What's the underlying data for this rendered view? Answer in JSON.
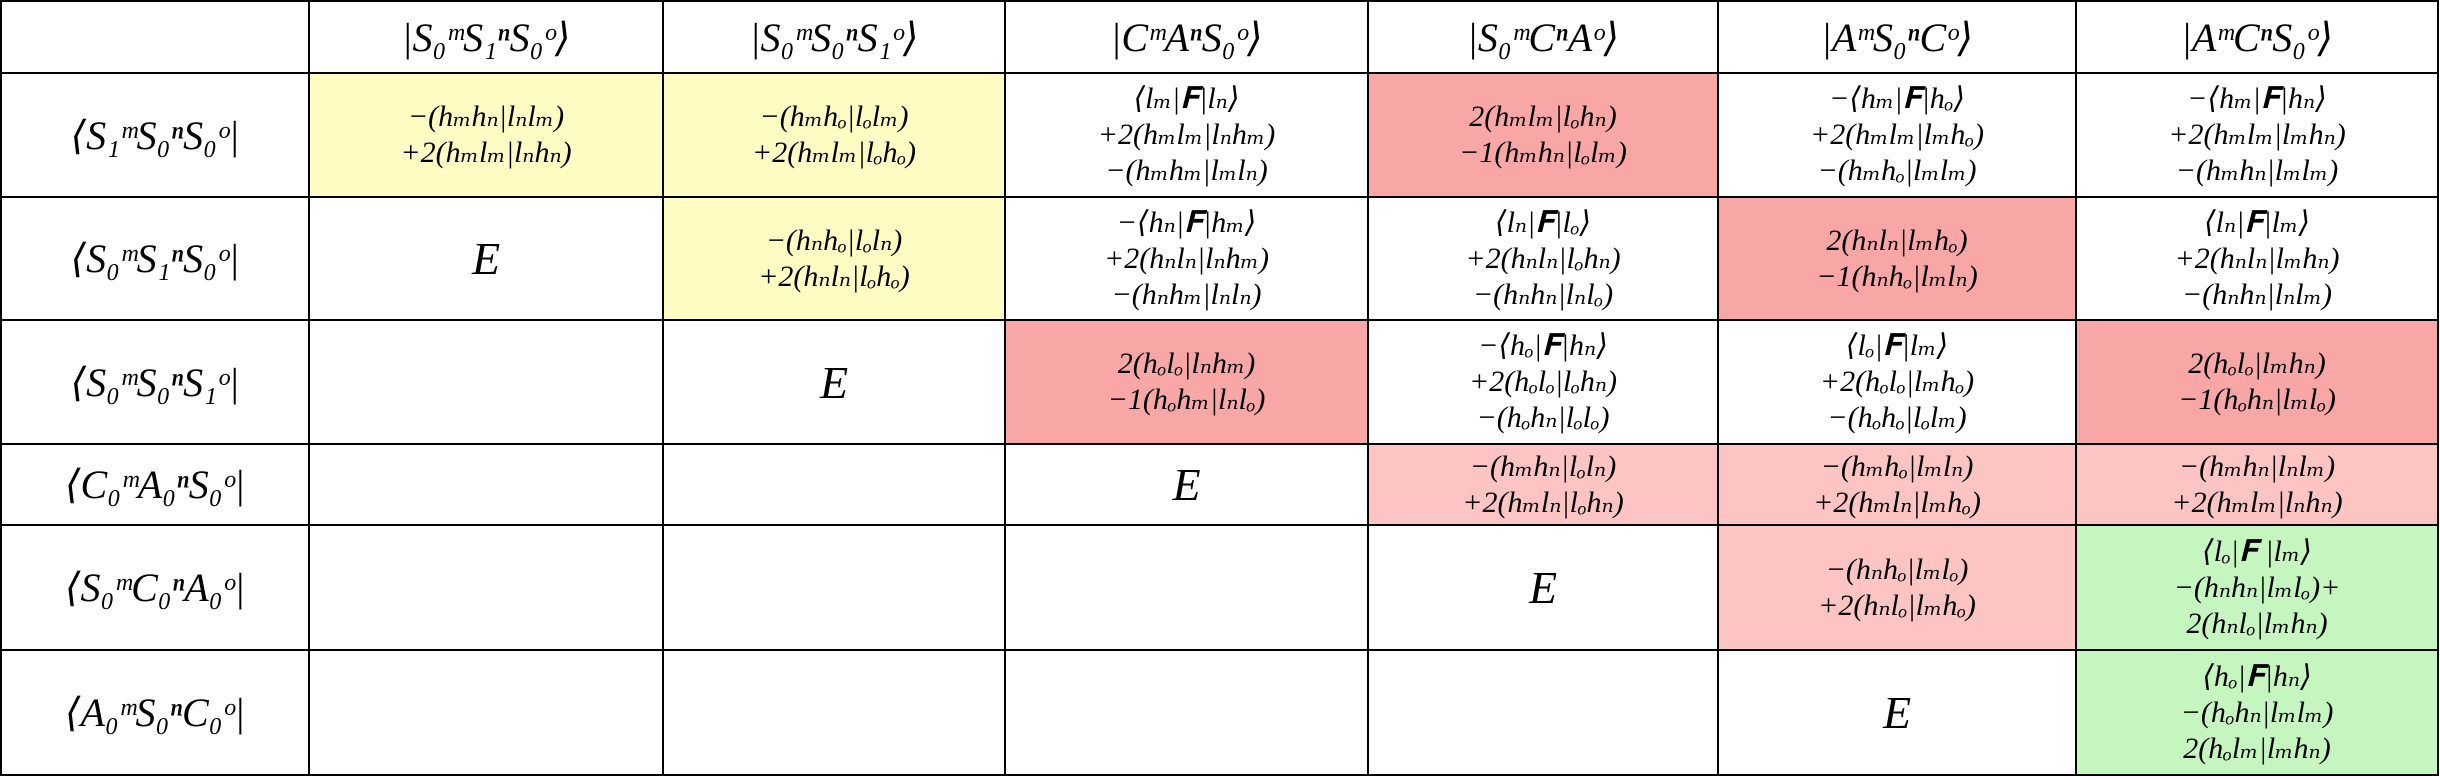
{
  "table": {
    "header": [
      "|S₀ᵐS₁ⁿS₀ᵒ⟩",
      "|S₀ᵐS₀ⁿS₁ᵒ⟩",
      "|CᵐAⁿS₀ᵒ⟩",
      "|S₀ᵐCⁿAᵒ⟩",
      "|AᵐS₀ⁿCᵒ⟩",
      "|AᵐCⁿS₀ᵒ⟩"
    ],
    "rows": [
      {
        "label": "⟨S₁ᵐS₀ⁿS₀ᵒ|",
        "cells": [
          {
            "lines": [
              "−(hₘhₙ|lₙlₘ)",
              "+2(hₘlₘ|lₙhₙ)"
            ],
            "color": "#fefcc2"
          },
          {
            "lines": [
              "−(hₘhₒ|lₒlₘ)",
              "+2(hₘlₘ|lₒhₒ)"
            ],
            "color": "#fefcc2"
          },
          {
            "lines": [
              "⟨lₘ|𝐅|lₙ⟩",
              "+2(hₘlₘ|lₙhₘ)",
              "−(hₘhₘ|lₘlₙ)"
            ]
          },
          {
            "lines": [
              "2(hₘlₘ|lₒhₙ)",
              "−1(hₘhₙ|lₒlₘ)"
            ],
            "color": "#f8a6a6"
          },
          {
            "lines": [
              "−⟨hₘ|𝐅|hₒ⟩",
              "+2(hₘlₘ|lₘhₒ)",
              "−(hₘhₒ|lₘlₘ)"
            ]
          },
          {
            "lines": [
              "−⟨hₘ|𝐅|hₙ⟩",
              "+2(hₘlₘ|lₘhₙ)",
              "−(hₘhₙ|lₘlₘ)"
            ]
          }
        ]
      },
      {
        "label": "⟨S₀ᵐS₁ⁿS₀ᵒ|",
        "cells": [
          {
            "lines": [
              "E"
            ]
          },
          {
            "lines": [
              "−(hₙhₒ|lₒlₙ)",
              "+2(hₙlₙ|lₒhₒ)"
            ],
            "color": "#fefcc2"
          },
          {
            "lines": [
              "−⟨hₙ|𝐅|hₘ⟩",
              "+2(hₙlₙ|lₙhₘ)",
              "−(hₙhₘ|lₙlₙ)"
            ]
          },
          {
            "lines": [
              "⟨lₙ|𝐅|lₒ⟩",
              "+2(hₙlₙ|lₒhₙ)",
              "−(hₙhₙ|lₙlₒ)"
            ]
          },
          {
            "lines": [
              "2(hₙlₙ|lₘhₒ)",
              "−1(hₙhₒ|lₘlₙ)"
            ],
            "color": "#f8a6a6"
          },
          {
            "lines": [
              "⟨lₙ|𝐅|lₘ⟩",
              "+2(hₙlₙ|lₘhₙ)",
              "−(hₙhₙ|lₙlₘ)"
            ]
          }
        ]
      },
      {
        "label": "⟨S₀ᵐS₀ⁿS₁ᵒ|",
        "cells": [
          null,
          {
            "lines": [
              "E"
            ]
          },
          {
            "lines": [
              "2(hₒlₒ|lₙhₘ)",
              "−1(hₒhₘ|lₙlₒ)"
            ],
            "color": "#f8a6a6"
          },
          {
            "lines": [
              "−⟨hₒ|𝐅|hₙ⟩",
              "+2(hₒlₒ|lₒhₙ)",
              "−(hₒhₙ|lₒlₒ)"
            ]
          },
          {
            "lines": [
              "⟨lₒ|𝐅|lₘ⟩",
              "+2(hₒlₒ|lₘhₒ)",
              "−(hₒhₒ|lₒlₘ)"
            ]
          },
          {
            "lines": [
              "2(hₒlₒ|lₘhₙ)",
              "−1(hₒhₙ|lₘlₒ)"
            ],
            "color": "#f8a6a6"
          }
        ]
      },
      {
        "label": "⟨C₀ᵐA₀ⁿS₀ᵒ|",
        "cells": [
          null,
          null,
          {
            "lines": [
              "E"
            ]
          },
          {
            "lines": [
              "−(hₘhₙ|lₒlₙ)",
              "+2(hₘlₙ|lₒhₙ)"
            ],
            "color": "#fdc4c4"
          },
          {
            "lines": [
              "−(hₘhₒ|lₘlₙ)",
              "+2(hₘlₙ|lₘhₒ)"
            ],
            "color": "#fdc4c4"
          },
          {
            "lines": [
              "−(hₘhₙ|lₙlₘ)",
              "+2(hₘlₘ|lₙhₙ)"
            ],
            "color": "#fdc4c4"
          }
        ]
      },
      {
        "label": "⟨S₀ᵐC₀ⁿA₀ᵒ|",
        "cells": [
          null,
          null,
          null,
          {
            "lines": [
              "E"
            ]
          },
          {
            "lines": [
              "−(hₙhₒ|lₘlₒ)",
              "+2(hₙlₒ|lₘhₒ)"
            ],
            "color": "#fdc4c4"
          },
          {
            "lines": [
              "⟨lₒ|𝐅 |lₘ⟩",
              "−(hₙhₙ|lₘlₒ)+",
              "2(hₙlₒ|lₘhₙ)"
            ],
            "color": "#c5f6c0"
          }
        ]
      },
      {
        "label": "⟨A₀ᵐS₀ⁿC₀ᵒ|",
        "cells": [
          null,
          null,
          null,
          null,
          {
            "lines": [
              "E"
            ]
          },
          {
            "lines": [
              "⟨hₒ|𝐅|hₙ⟩",
              "−(hₒhₙ|lₘlₘ)",
              "2(hₒlₘ|lₘhₙ)"
            ],
            "color": "#c5f6c0"
          }
        ]
      }
    ]
  }
}
